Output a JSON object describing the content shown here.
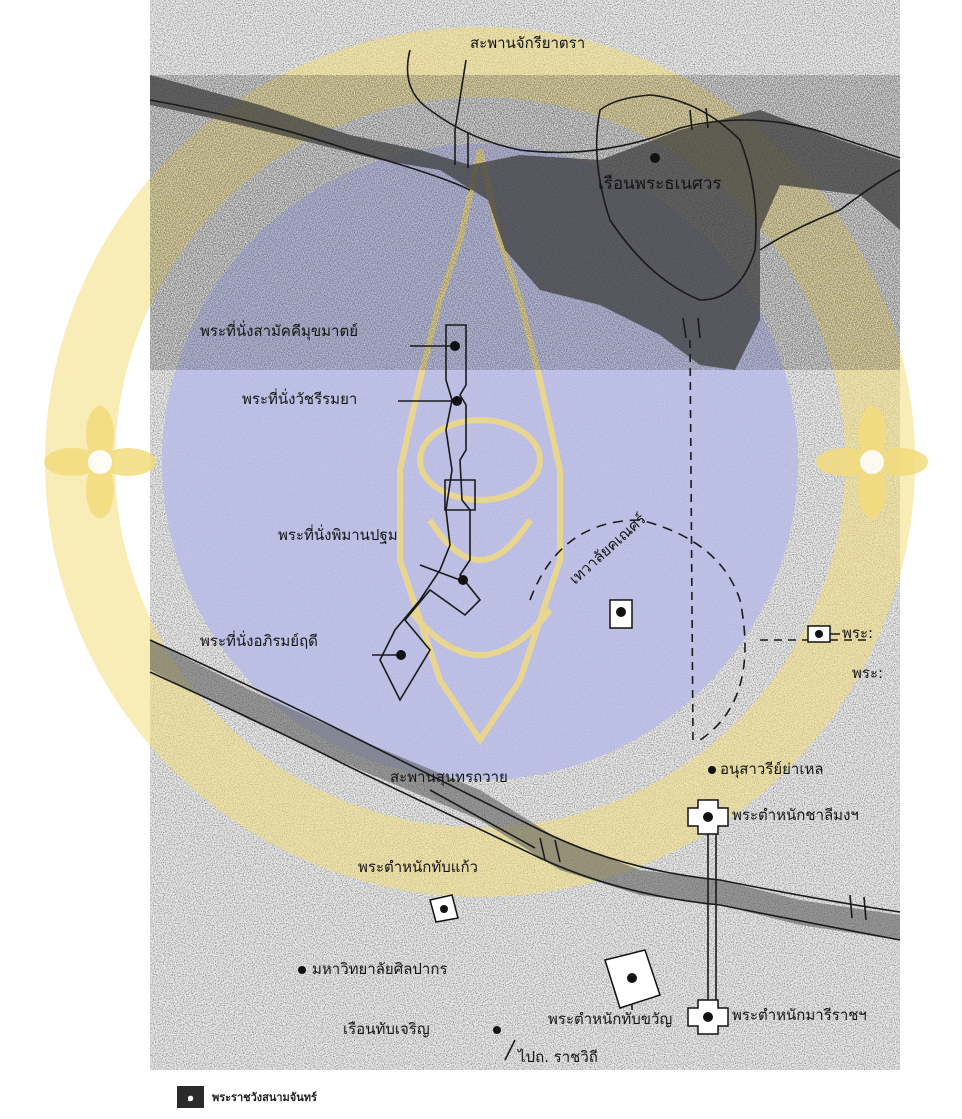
{
  "map": {
    "labels": {
      "bridge_north": "สะพานจักรียาตรา",
      "ruen_phra_thanesuan": "เรือนพระธเนศวร",
      "samakkhi": "พระที่นั่งสามัคคีมุขมาตย์",
      "watcharin": "พระที่นั่งวัชรีรมยา",
      "phiman_pathom": "พระที่นั่งพิมานปฐม",
      "aphirom": "พระที่นั่งอภิรมย์ฤดี",
      "thewalai": "เทวาลัยคเณศร์",
      "phra_right_1": "พระ:",
      "phra_right_2": "พระ:",
      "bridge_south": "สะพานสุนทรถวาย",
      "anusawari": "อนุสาวรีย์ย่าเหล",
      "talimang": "พระตำหนักชาลีมงฯ",
      "thap_kaeo": "พระตำหนักทับแก้ว",
      "silpakorn": "มหาวิทยาลัยศิลปากร",
      "thap_charoen": "เรือนทับเจริญ",
      "thap_khwan": "พระตำหนักทับขวัญ",
      "mari_rat": "พระตำหนักมารีราชฯ",
      "to_road": "ไปถ. ราชวิถี"
    }
  },
  "caption": {
    "number": "๑",
    "text": "พระราชวังสนามจันทร์"
  },
  "watermark": {
    "circle_color": "#b9bce6",
    "emblem_color": "#f3dc7c"
  }
}
